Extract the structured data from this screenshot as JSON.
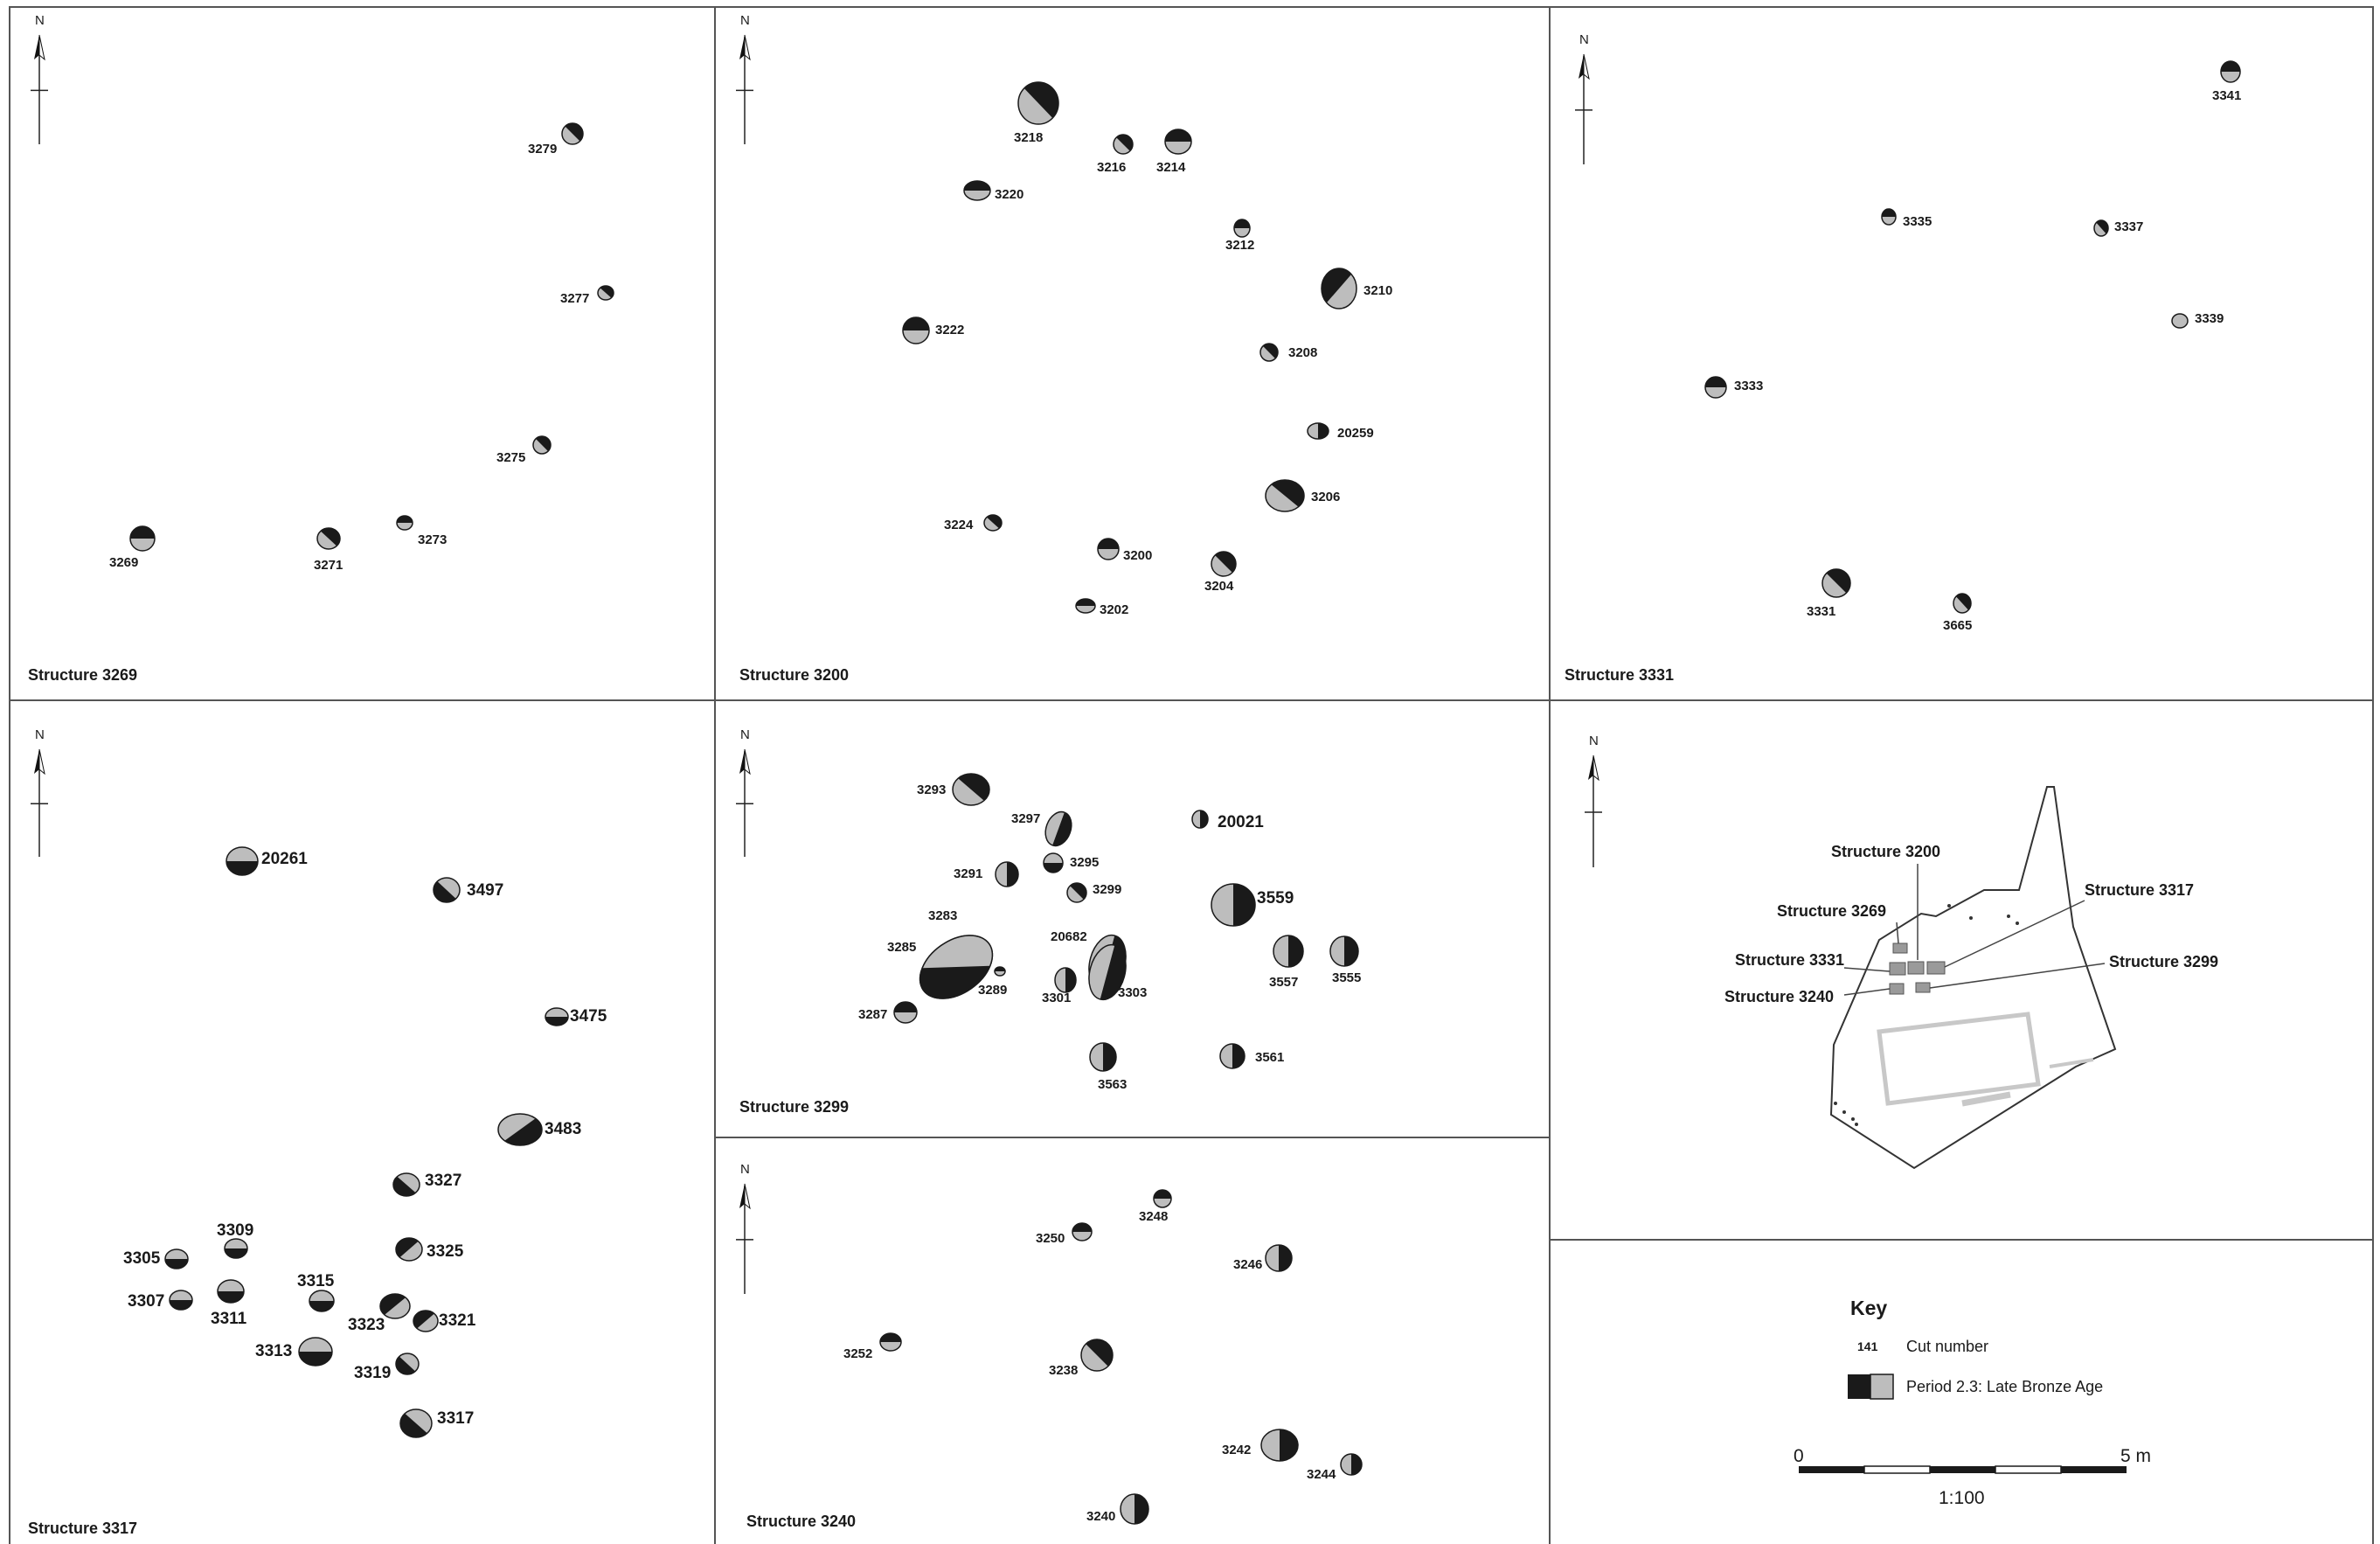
{
  "panels": [
    {
      "id": "3269",
      "title": "Structure 3269",
      "features": [
        {
          "label": "3279",
          "fill": "grey",
          "dark": "top-right"
        },
        {
          "label": "3277",
          "fill": "grey",
          "dark": "top-right"
        },
        {
          "label": "3275",
          "fill": "grey",
          "dark": "top-right"
        },
        {
          "label": "3273",
          "fill": "grey",
          "dark": "top"
        },
        {
          "label": "3271",
          "fill": "grey",
          "dark": "top-right"
        },
        {
          "label": "3269",
          "fill": "grey",
          "dark": "top"
        }
      ]
    },
    {
      "id": "3200",
      "title": "Structure 3200",
      "features": [
        {
          "label": "3218",
          "fill": "grey",
          "dark": "top-right"
        },
        {
          "label": "3216",
          "fill": "grey",
          "dark": "top-right"
        },
        {
          "label": "3214",
          "fill": "grey",
          "dark": "top"
        },
        {
          "label": "3220",
          "fill": "grey",
          "dark": "top"
        },
        {
          "label": "3212",
          "fill": "grey",
          "dark": "top"
        },
        {
          "label": "3210",
          "fill": "grey",
          "dark": "top-left"
        },
        {
          "label": "3222",
          "fill": "grey",
          "dark": "top"
        },
        {
          "label": "3208",
          "fill": "grey",
          "dark": "top-right"
        },
        {
          "label": "20259",
          "fill": "grey",
          "dark": "right"
        },
        {
          "label": "3206",
          "fill": "grey",
          "dark": "top-right"
        },
        {
          "label": "3224",
          "fill": "grey",
          "dark": "top-right"
        },
        {
          "label": "3200",
          "fill": "grey",
          "dark": "top"
        },
        {
          "label": "3204",
          "fill": "grey",
          "dark": "top-right"
        },
        {
          "label": "3202",
          "fill": "grey",
          "dark": "top"
        }
      ]
    },
    {
      "id": "3331",
      "title": "Structure 3331",
      "features": [
        {
          "label": "3341",
          "fill": "grey",
          "dark": "top"
        },
        {
          "label": "3335",
          "fill": "grey",
          "dark": "top"
        },
        {
          "label": "3337",
          "fill": "grey",
          "dark": "top-right"
        },
        {
          "label": "3339",
          "fill": "grey",
          "dark": "none"
        },
        {
          "label": "3333",
          "fill": "grey",
          "dark": "top"
        },
        {
          "label": "3331",
          "fill": "grey",
          "dark": "top-right"
        },
        {
          "label": "3665",
          "fill": "grey",
          "dark": "top-right"
        }
      ]
    },
    {
      "id": "3317",
      "title": "Structure 3317",
      "features": [
        {
          "label": "20261",
          "fill": "grey",
          "dark": "bottom"
        },
        {
          "label": "3497",
          "fill": "grey",
          "dark": "bottom-left"
        },
        {
          "label": "3475",
          "fill": "grey",
          "dark": "bottom"
        },
        {
          "label": "3483",
          "fill": "grey",
          "dark": "bottom-right"
        },
        {
          "label": "3327",
          "fill": "grey",
          "dark": "bottom-left"
        },
        {
          "label": "3309",
          "fill": "grey",
          "dark": "bottom"
        },
        {
          "label": "3325",
          "fill": "grey",
          "dark": "top-left"
        },
        {
          "label": "3305",
          "fill": "grey",
          "dark": "bottom"
        },
        {
          "label": "3311",
          "fill": "grey",
          "dark": "bottom"
        },
        {
          "label": "3315",
          "fill": "grey",
          "dark": "bottom"
        },
        {
          "label": "3307",
          "fill": "grey",
          "dark": "bottom"
        },
        {
          "label": "3323",
          "fill": "grey",
          "dark": "top-left"
        },
        {
          "label": "3321",
          "fill": "grey",
          "dark": "top-left"
        },
        {
          "label": "3313",
          "fill": "grey",
          "dark": "bottom"
        },
        {
          "label": "3319",
          "fill": "grey",
          "dark": "bottom-left"
        },
        {
          "label": "3317",
          "fill": "grey",
          "dark": "bottom-left"
        }
      ]
    },
    {
      "id": "3299",
      "title": "Structure 3299",
      "features": [
        {
          "label": "3293",
          "fill": "grey",
          "dark": "top-right"
        },
        {
          "label": "3297",
          "fill": "grey",
          "dark": "right"
        },
        {
          "label": "20021",
          "fill": "grey",
          "dark": "right"
        },
        {
          "label": "3291",
          "fill": "grey",
          "dark": "right"
        },
        {
          "label": "3295",
          "fill": "grey",
          "dark": "bottom"
        },
        {
          "label": "3299",
          "fill": "grey",
          "dark": "top-right"
        },
        {
          "label": "3559",
          "fill": "grey",
          "dark": "right"
        },
        {
          "label": "3283",
          "fill": "grey",
          "dark": "bottom-right"
        },
        {
          "label": "3285",
          "fill": "grey",
          "dark": "bottom-right"
        },
        {
          "label": "20682",
          "fill": "grey",
          "dark": "right"
        },
        {
          "label": "3557",
          "fill": "grey",
          "dark": "right"
        },
        {
          "label": "3555",
          "fill": "grey",
          "dark": "right"
        },
        {
          "label": "3289",
          "fill": "grey",
          "dark": "top"
        },
        {
          "label": "3301",
          "fill": "grey",
          "dark": "right"
        },
        {
          "label": "3303",
          "fill": "grey",
          "dark": "right"
        },
        {
          "label": "3287",
          "fill": "grey",
          "dark": "top"
        },
        {
          "label": "3561",
          "fill": "grey",
          "dark": "right"
        },
        {
          "label": "3563",
          "fill": "grey",
          "dark": "right"
        }
      ]
    },
    {
      "id": "3240",
      "title": "Structure 3240",
      "features": [
        {
          "label": "3248",
          "fill": "grey",
          "dark": "top"
        },
        {
          "label": "3250",
          "fill": "grey",
          "dark": "top"
        },
        {
          "label": "3246",
          "fill": "grey",
          "dark": "right"
        },
        {
          "label": "3252",
          "fill": "grey",
          "dark": "top"
        },
        {
          "label": "3238",
          "fill": "grey",
          "dark": "top-right"
        },
        {
          "label": "3242",
          "fill": "grey",
          "dark": "right"
        },
        {
          "label": "3244",
          "fill": "grey",
          "dark": "right"
        },
        {
          "label": "3240",
          "fill": "grey",
          "dark": "right"
        }
      ]
    }
  ],
  "location_map": {
    "labels": [
      "Structure 3200",
      "Structure 3269",
      "Structure 3317",
      "Structure 3331",
      "Structure 3299",
      "Structure 3240"
    ]
  },
  "north_arrow": {
    "letter": "N"
  },
  "key": {
    "title": "Key",
    "cut_example": "141",
    "cut_text": "Cut number",
    "period_text": "Period 2.3: Late Bronze Age"
  },
  "scale": {
    "start": "0",
    "end": "5 m",
    "ratio": "1:100"
  },
  "colors": {
    "dark": "#1a1a1a",
    "grey": "#bdbdbd",
    "frame": "#555555",
    "line": "#444444"
  }
}
